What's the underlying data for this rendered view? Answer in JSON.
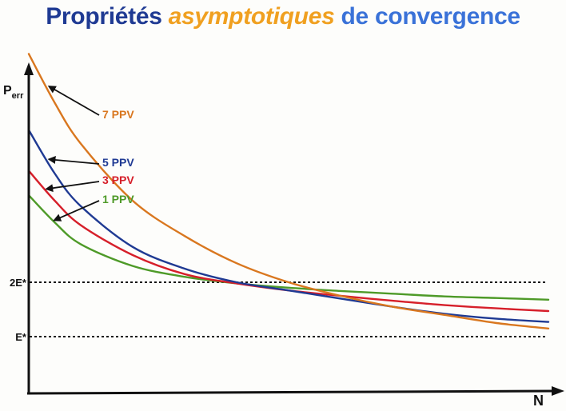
{
  "title": {
    "part1": "Propriétés",
    "part2": "asymptotiques",
    "part3": "de convergence"
  },
  "chart_data": {
    "type": "line",
    "ylabel_main": "P",
    "ylabel_sub": "err",
    "xlabel": "N",
    "y_markers": [
      {
        "label": "2E*",
        "value": 2
      },
      {
        "label": "E*",
        "value": 1
      }
    ],
    "series": [
      {
        "name": "7 PPV",
        "color": "#d9771f",
        "points": [
          [
            0.0,
            6.2
          ],
          [
            0.05,
            5.3
          ],
          [
            0.1,
            4.55
          ],
          [
            0.2,
            3.5
          ],
          [
            0.3,
            2.85
          ],
          [
            0.4,
            2.35
          ],
          [
            0.5,
            2.0
          ],
          [
            0.6,
            1.75
          ],
          [
            0.7,
            1.55
          ],
          [
            0.8,
            1.4
          ],
          [
            0.9,
            1.25
          ],
          [
            1.0,
            1.15
          ]
        ]
      },
      {
        "name": "5 PPV",
        "color": "#1f3a93",
        "points": [
          [
            0.0,
            4.8
          ],
          [
            0.05,
            4.0
          ],
          [
            0.1,
            3.4
          ],
          [
            0.2,
            2.65
          ],
          [
            0.3,
            2.25
          ],
          [
            0.4,
            2.0
          ],
          [
            0.5,
            1.85
          ],
          [
            0.6,
            1.7
          ],
          [
            0.7,
            1.55
          ],
          [
            0.8,
            1.42
          ],
          [
            0.9,
            1.33
          ],
          [
            1.0,
            1.27
          ]
        ]
      },
      {
        "name": "3 PPV",
        "color": "#d61f2a",
        "points": [
          [
            0.0,
            4.05
          ],
          [
            0.05,
            3.5
          ],
          [
            0.1,
            3.05
          ],
          [
            0.2,
            2.5
          ],
          [
            0.3,
            2.15
          ],
          [
            0.4,
            1.98
          ],
          [
            0.5,
            1.85
          ],
          [
            0.6,
            1.75
          ],
          [
            0.7,
            1.66
          ],
          [
            0.8,
            1.58
          ],
          [
            0.9,
            1.52
          ],
          [
            1.0,
            1.47
          ]
        ]
      },
      {
        "name": "1 PPV",
        "color": "#4e9a28",
        "points": [
          [
            0.0,
            3.6
          ],
          [
            0.05,
            3.1
          ],
          [
            0.1,
            2.7
          ],
          [
            0.2,
            2.3
          ],
          [
            0.3,
            2.1
          ],
          [
            0.4,
            1.98
          ],
          [
            0.5,
            1.9
          ],
          [
            0.6,
            1.84
          ],
          [
            0.7,
            1.79
          ],
          [
            0.8,
            1.74
          ],
          [
            0.9,
            1.71
          ],
          [
            1.0,
            1.68
          ]
        ]
      }
    ]
  }
}
